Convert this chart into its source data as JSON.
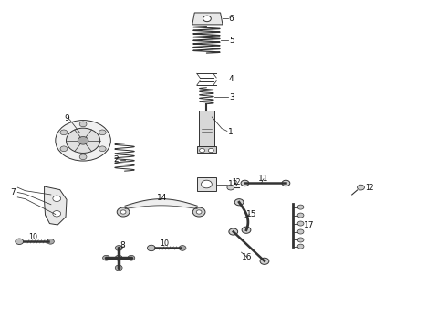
{
  "bg_color": "#ffffff",
  "line_color": "#333333",
  "figsize": [
    4.9,
    3.6
  ],
  "dpi": 100
}
